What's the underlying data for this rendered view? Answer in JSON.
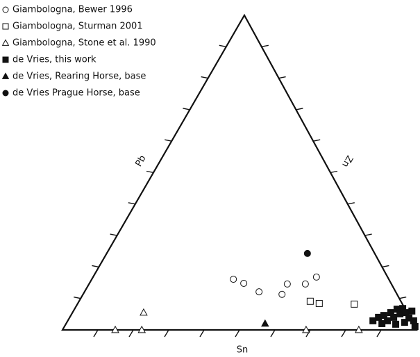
{
  "chart_data": {
    "type": "ternary",
    "axis_labels": {
      "left": "Pb",
      "right": "Zn",
      "bottom": "Sn"
    },
    "ticks": [
      10,
      20,
      30,
      40,
      50,
      60,
      70,
      80,
      90
    ],
    "legend": "top-left",
    "color": "#111111",
    "series": [
      {
        "name": "Giambologna, Bewer 1996",
        "marker": "circle",
        "filled": false,
        "sn": [
          40.0,
          43.6,
          49.3,
          56.2,
          56.0,
          61.1,
          63.1
        ],
        "zn": [
          16.1,
          14.8,
          12.1,
          11.3,
          14.6,
          14.6,
          16.8
        ]
      },
      {
        "name": "Giambologna, Sturman 2001",
        "marker": "square",
        "filled": false,
        "sn": [
          65.3,
          68.2,
          78.2
        ],
        "zn": [
          9.1,
          8.4,
          8.2
        ]
      },
      {
        "name": "Giambologna, Stone et al. 1990",
        "marker": "triangle",
        "filled": false,
        "sn": [
          20.1,
          14.9,
          22.4,
          68.8,
          83.7
        ],
        "zn": [
          5.5,
          0,
          0,
          0,
          0
        ]
      },
      {
        "name": "de Vries, this work",
        "marker": "square",
        "filled": true,
        "sn": [
          86.2,
          87.2,
          88.4,
          90.3,
          89.9,
          91.5,
          91.1,
          92.7,
          92.6,
          94.2,
          95.9,
          95.6,
          97.7,
          93.2,
          95.4,
          89.2,
          99.0
        ],
        "zn": [
          2.9,
          4.0,
          4.6,
          2.9,
          5.5,
          4.0,
          6.6,
          5.1,
          6.8,
          5.5,
          3.8,
          6.0,
          2.9,
          1.8,
          2.4,
          2.0,
          1.1
        ]
      },
      {
        "name": "de Vries, Rearing Horse, base",
        "marker": "triangle",
        "filled": true,
        "sn": [
          56.2
        ],
        "zn": [
          2.0
        ]
      },
      {
        "name": "de Vries Prague Horse, base",
        "marker": "circle",
        "filled": true,
        "sn": [
          56.7
        ],
        "zn": [
          24.3
        ]
      }
    ]
  }
}
